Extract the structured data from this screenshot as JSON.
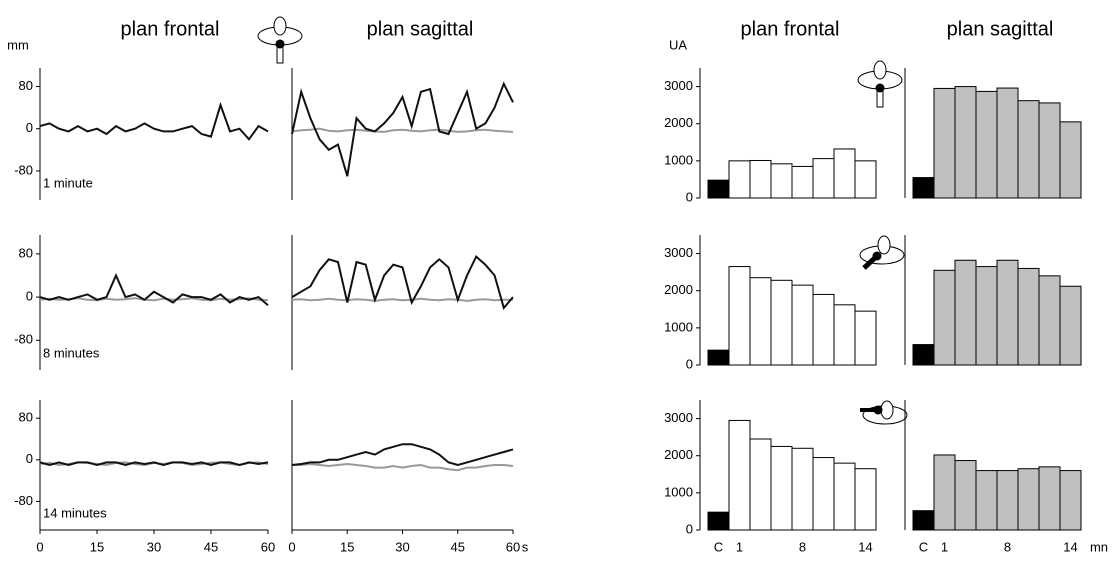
{
  "chart_data": [
    {
      "type": "line",
      "title": "plan frontal",
      "ylabel": "mm",
      "annotation": "1 minute",
      "ylim": [
        -135,
        115
      ],
      "yticks": [
        80,
        0,
        -80
      ],
      "x": [
        0,
        2.5,
        5,
        7.5,
        10,
        12.5,
        15,
        17.5,
        20,
        22.5,
        25,
        27.5,
        30,
        32.5,
        35,
        37.5,
        40,
        42.5,
        45,
        47.5,
        50,
        52.5,
        55,
        57.5,
        60
      ],
      "xlim": [
        0,
        60
      ],
      "series": [
        {
          "color": "#111111",
          "values": [
            5,
            10,
            0,
            -5,
            5,
            -5,
            0,
            -10,
            5,
            -5,
            0,
            10,
            0,
            -5,
            -5,
            0,
            5,
            -10,
            -15,
            45,
            -5,
            0,
            -20,
            5,
            -5
          ]
        }
      ]
    },
    {
      "type": "line",
      "title": "plan sagittal",
      "ylim": [
        -135,
        115
      ],
      "x": [
        0,
        2.5,
        5,
        7.5,
        10,
        12.5,
        15,
        17.5,
        20,
        22.5,
        25,
        27.5,
        30,
        32.5,
        35,
        37.5,
        40,
        42.5,
        45,
        47.5,
        50,
        52.5,
        55,
        57.5,
        60
      ],
      "xlim": [
        0,
        60
      ],
      "series": [
        {
          "color": "#999999",
          "values": [
            -5,
            -3,
            -2,
            0,
            -4,
            -5,
            -3,
            -2,
            -4,
            -5,
            -6,
            -3,
            -2,
            -4,
            -5,
            -3,
            -2,
            -4,
            -6,
            -5,
            -3,
            -2,
            -4,
            -5,
            -6
          ]
        },
        {
          "color": "#111111",
          "values": [
            -10,
            70,
            20,
            -20,
            -40,
            -30,
            -90,
            20,
            0,
            -5,
            10,
            30,
            60,
            5,
            70,
            75,
            -5,
            -10,
            30,
            70,
            0,
            10,
            40,
            85,
            50
          ]
        }
      ]
    },
    {
      "type": "line",
      "annotation": "8 minutes",
      "ylim": [
        -135,
        115
      ],
      "yticks": [
        80,
        0,
        -80
      ],
      "x": [
        0,
        2.5,
        5,
        7.5,
        10,
        12.5,
        15,
        17.5,
        20,
        22.5,
        25,
        27.5,
        30,
        32.5,
        35,
        37.5,
        40,
        42.5,
        45,
        47.5,
        50,
        52.5,
        55,
        57.5,
        60
      ],
      "xlim": [
        0,
        60
      ],
      "series": [
        {
          "color": "#999999",
          "values": [
            -5,
            -3,
            -5,
            -4,
            -2,
            -5,
            -6,
            -3,
            -5,
            -4,
            -2,
            -5,
            -6,
            -3,
            -5,
            -4,
            -2,
            -5,
            -6,
            -3,
            -5,
            -4,
            -2,
            -5,
            -6
          ]
        },
        {
          "color": "#111111",
          "values": [
            0,
            -5,
            0,
            -5,
            0,
            5,
            -5,
            0,
            40,
            0,
            5,
            -5,
            10,
            0,
            -10,
            5,
            0,
            0,
            -5,
            5,
            -10,
            0,
            -5,
            0,
            -15
          ]
        }
      ]
    },
    {
      "type": "line",
      "ylim": [
        -135,
        115
      ],
      "x": [
        0,
        2.5,
        5,
        7.5,
        10,
        12.5,
        15,
        17.5,
        20,
        22.5,
        25,
        27.5,
        30,
        32.5,
        35,
        37.5,
        40,
        42.5,
        45,
        47.5,
        50,
        52.5,
        55,
        57.5,
        60
      ],
      "xlim": [
        0,
        60
      ],
      "series": [
        {
          "color": "#999999",
          "values": [
            -5,
            -4,
            -6,
            -5,
            -3,
            -5,
            -6,
            -4,
            -5,
            -7,
            -5,
            -4,
            -6,
            -5,
            -3,
            -5,
            -6,
            -4,
            -5,
            -7,
            -5,
            -4,
            -6,
            -5,
            -5
          ]
        },
        {
          "color": "#111111",
          "values": [
            0,
            10,
            20,
            50,
            70,
            65,
            -10,
            65,
            60,
            -5,
            40,
            60,
            55,
            -10,
            20,
            55,
            70,
            55,
            -5,
            40,
            75,
            60,
            40,
            -20,
            0
          ]
        }
      ]
    },
    {
      "type": "line",
      "annotation": "14 minutes",
      "ylim": [
        -135,
        115
      ],
      "yticks": [
        80,
        0,
        -80
      ],
      "x": [
        0,
        2.5,
        5,
        7.5,
        10,
        12.5,
        15,
        17.5,
        20,
        22.5,
        25,
        27.5,
        30,
        32.5,
        35,
        37.5,
        40,
        42.5,
        45,
        47.5,
        50,
        52.5,
        55,
        57.5,
        60
      ],
      "xlim": [
        0,
        60
      ],
      "xticks": [
        0,
        15,
        30,
        45,
        60
      ],
      "series": [
        {
          "color": "#999999",
          "values": [
            -8,
            -6,
            -10,
            -8,
            -5,
            -6,
            -8,
            -10,
            -6,
            -5,
            -8,
            -10,
            -6,
            -8,
            -5,
            -6,
            -10,
            -8,
            -6,
            -5,
            -8,
            -10,
            -6,
            -5,
            -8
          ]
        },
        {
          "color": "#111111",
          "values": [
            -5,
            -10,
            -5,
            -10,
            -5,
            -5,
            -10,
            -5,
            -5,
            -10,
            -5,
            -8,
            -5,
            -10,
            -5,
            -5,
            -8,
            -5,
            -10,
            -5,
            -5,
            -10,
            -5,
            -8,
            -5
          ]
        }
      ]
    },
    {
      "type": "line",
      "xlabel": "s",
      "ylim": [
        -135,
        115
      ],
      "x": [
        0,
        2.5,
        5,
        7.5,
        10,
        12.5,
        15,
        17.5,
        20,
        22.5,
        25,
        27.5,
        30,
        32.5,
        35,
        37.5,
        40,
        42.5,
        45,
        47.5,
        50,
        52.5,
        55,
        57.5,
        60
      ],
      "xlim": [
        0,
        60
      ],
      "xticks": [
        0,
        15,
        30,
        45,
        60
      ],
      "series": [
        {
          "color": "#999999",
          "values": [
            -10,
            -10,
            -8,
            -10,
            -12,
            -10,
            -8,
            -10,
            -12,
            -15,
            -15,
            -12,
            -15,
            -12,
            -10,
            -15,
            -15,
            -18,
            -20,
            -15,
            -15,
            -12,
            -10,
            -10,
            -12
          ]
        },
        {
          "color": "#111111",
          "values": [
            -10,
            -8,
            -5,
            -5,
            0,
            0,
            5,
            10,
            15,
            10,
            20,
            25,
            30,
            30,
            25,
            20,
            10,
            -5,
            -10,
            -5,
            0,
            5,
            10,
            15,
            20
          ]
        }
      ]
    },
    {
      "type": "bar",
      "title": "plan frontal",
      "ylabel": "UA",
      "ylim": [
        0,
        3500
      ],
      "yticks": [
        0,
        1000,
        2000,
        3000
      ],
      "values": [
        480,
        1000,
        1010,
        920,
        850,
        1060,
        1320,
        1000
      ],
      "colors": [
        "#000000",
        "#ffffff",
        "#ffffff",
        "#ffffff",
        "#ffffff",
        "#ffffff",
        "#ffffff",
        "#ffffff"
      ]
    },
    {
      "type": "bar",
      "title": "plan sagittal",
      "ylim": [
        0,
        3500
      ],
      "values": [
        550,
        2950,
        3000,
        2870,
        2960,
        2620,
        2560,
        2050
      ],
      "colors": [
        "#000000",
        "#c0c0c0",
        "#c0c0c0",
        "#c0c0c0",
        "#c0c0c0",
        "#c0c0c0",
        "#c0c0c0",
        "#c0c0c0"
      ]
    },
    {
      "type": "bar",
      "ylim": [
        0,
        3500
      ],
      "yticks": [
        0,
        1000,
        2000,
        3000
      ],
      "values": [
        400,
        2650,
        2350,
        2280,
        2150,
        1900,
        1620,
        1450
      ],
      "colors": [
        "#000000",
        "#ffffff",
        "#ffffff",
        "#ffffff",
        "#ffffff",
        "#ffffff",
        "#ffffff",
        "#ffffff"
      ]
    },
    {
      "type": "bar",
      "ylim": [
        0,
        3500
      ],
      "values": [
        550,
        2550,
        2820,
        2650,
        2820,
        2600,
        2400,
        2120
      ],
      "colors": [
        "#000000",
        "#c0c0c0",
        "#c0c0c0",
        "#c0c0c0",
        "#c0c0c0",
        "#c0c0c0",
        "#c0c0c0",
        "#c0c0c0"
      ]
    },
    {
      "type": "bar",
      "ylim": [
        0,
        3500
      ],
      "yticks": [
        0,
        1000,
        2000,
        3000
      ],
      "categories": [
        "C",
        "1",
        null,
        null,
        "8",
        null,
        null,
        "14"
      ],
      "values": [
        480,
        2950,
        2450,
        2250,
        2200,
        1950,
        1800,
        1650
      ],
      "colors": [
        "#000000",
        "#ffffff",
        "#ffffff",
        "#ffffff",
        "#ffffff",
        "#ffffff",
        "#ffffff",
        "#ffffff"
      ]
    },
    {
      "type": "bar",
      "xlabel": "mn",
      "ylim": [
        0,
        3500
      ],
      "categories": [
        "C",
        "1",
        null,
        null,
        "8",
        null,
        null,
        "14"
      ],
      "values": [
        520,
        2020,
        1870,
        1600,
        1600,
        1650,
        1700,
        1600
      ],
      "colors": [
        "#000000",
        "#c0c0c0",
        "#c0c0c0",
        "#c0c0c0",
        "#c0c0c0",
        "#c0c0c0",
        "#c0c0c0",
        "#c0c0c0"
      ]
    }
  ]
}
